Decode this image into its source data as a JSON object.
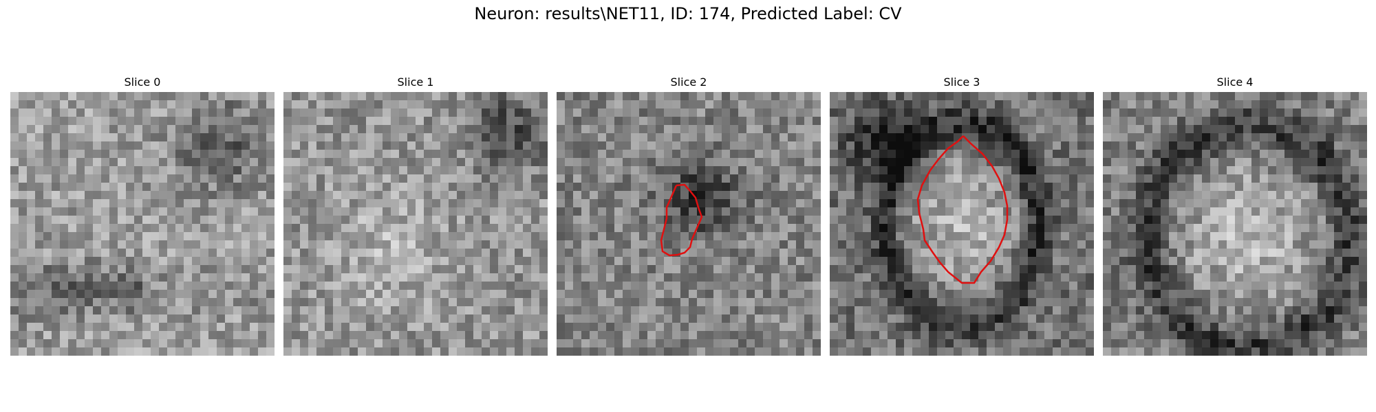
{
  "figure": {
    "title": "Neuron: results\\NET11, ID: 174, Predicted Label: CV"
  },
  "slices": [
    {
      "title": "Slice 0",
      "has_contour": false,
      "contour_color": "#e01010"
    },
    {
      "title": "Slice 1",
      "has_contour": false,
      "contour_color": "#e01010"
    },
    {
      "title": "Slice 2",
      "has_contour": true,
      "contour_color": "#e01010"
    },
    {
      "title": "Slice 3",
      "has_contour": true,
      "contour_color": "#e01010"
    },
    {
      "title": "Slice 4",
      "has_contour": false,
      "contour_color": "#e01010"
    }
  ]
}
